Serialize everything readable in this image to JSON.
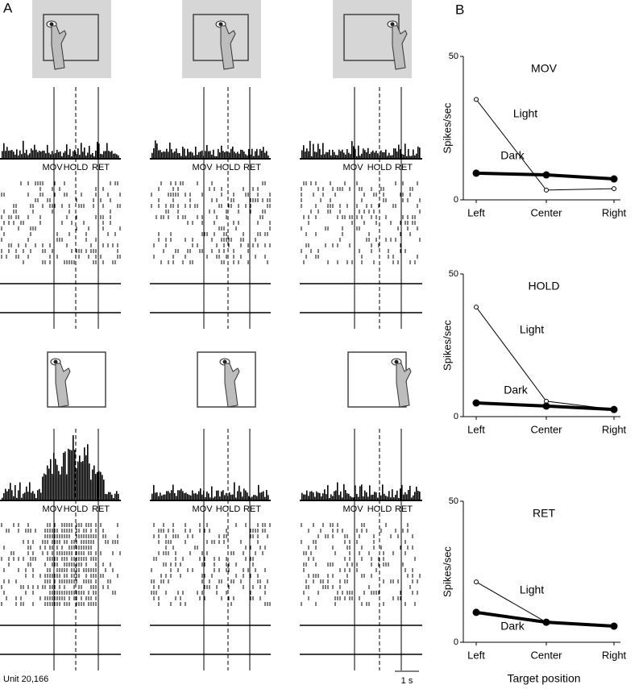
{
  "panel_a": {
    "label": "A",
    "events": [
      "MOV",
      "HOLD",
      "RET"
    ],
    "unit": "Unit 20,166",
    "scale_bar": "1 s"
  },
  "panel_b_label": "B",
  "chart_data": [
    {
      "type": "line",
      "title": "MOV",
      "ylabel": "Spikes/sec",
      "categories": [
        "Left",
        "Center",
        "Right"
      ],
      "ylim": [
        0,
        50
      ],
      "yticks": [
        0,
        50
      ],
      "series": [
        {
          "name": "Light",
          "color": "#000000",
          "values": [
            35,
            3.4,
            3.9
          ]
        },
        {
          "name": "Dark",
          "color": "#000000",
          "values": [
            9.3,
            8.7,
            7.3
          ]
        }
      ]
    },
    {
      "type": "line",
      "title": "HOLD",
      "ylabel": "Spikes/sec",
      "categories": [
        "Left",
        "Center",
        "Right"
      ],
      "ylim": [
        0,
        50
      ],
      "yticks": [
        0,
        50
      ],
      "series": [
        {
          "name": "Light",
          "color": "#000000",
          "values": [
            38.4,
            5.4,
            2.5
          ]
        },
        {
          "name": "Dark",
          "color": "#000000",
          "values": [
            4.8,
            3.7,
            2.5
          ]
        }
      ]
    },
    {
      "type": "line",
      "title": "RET",
      "ylabel": "Spikes/sec",
      "xlabel": "Target position",
      "categories": [
        "Left",
        "Center",
        "Right"
      ],
      "ylim": [
        0,
        50
      ],
      "yticks": [
        0,
        50
      ],
      "series": [
        {
          "name": "Light",
          "color": "#000000",
          "values": [
            21.4,
            7.1,
            5.7
          ]
        },
        {
          "name": "Dark",
          "color": "#000000",
          "values": [
            10.6,
            7.1,
            5.7
          ]
        }
      ]
    }
  ]
}
